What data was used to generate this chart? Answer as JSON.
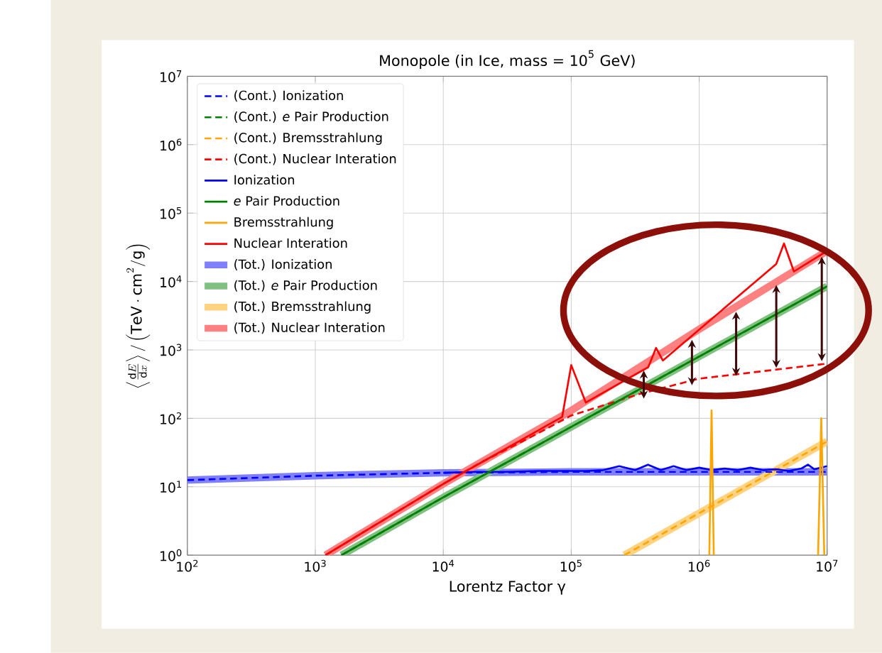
{
  "chart_data": {
    "type": "line",
    "title": "Monopole (in Ice, mass = 10$^{5}$ GeV)",
    "xlabel": "Lorentz Factor  γ",
    "ylabel": "\\left\\langle \\frac{\\mathrm{d}E}{\\mathrm{d}x} \\right\\rangle / \\left(\\mathrm{TeV}\\cdot\\mathrm{cm}^2/\\mathrm{g}\\right)",
    "log": "xy",
    "grid": true,
    "legend": "top left",
    "xlim": [
      100,
      10000000
    ],
    "ylim": [
      1,
      10000000
    ],
    "xticks": [
      {
        "value": 100,
        "label": "10$^{2}$"
      },
      {
        "value": 1000,
        "label": "10$^{3}$"
      },
      {
        "value": 10000,
        "label": "10$^{4}$"
      },
      {
        "value": 100000,
        "label": "10$^{5}$"
      },
      {
        "value": 1000000,
        "label": "10$^{6}$"
      },
      {
        "value": 10000000,
        "label": "10$^{7}$"
      }
    ],
    "yticks": [
      {
        "value": 1,
        "label": "10$^{0}$"
      },
      {
        "value": 10,
        "label": "10$^{1}$"
      },
      {
        "value": 100,
        "label": "10$^{2}$"
      },
      {
        "value": 1000,
        "label": "10$^{3}$"
      },
      {
        "value": 10000,
        "label": "10$^{4}$"
      },
      {
        "value": 100000,
        "label": "10$^{5}$"
      },
      {
        "value": 1000000,
        "label": "10$^{6}$"
      },
      {
        "value": 10000000,
        "label": "10$^{7}$"
      }
    ],
    "series": [
      {
        "name": "(Cont.) Ionization",
        "color": "#0000ff",
        "line_style": "dashed",
        "x": [
          100,
          1000,
          10000,
          100000,
          10000000
        ],
        "values": [
          12.5,
          14.5,
          16,
          16.5,
          16.5
        ]
      },
      {
        "name": "(Cont.) *e* Pair Production",
        "color": "#008000",
        "line_style": "dashed",
        "x": [
          1600,
          10000,
          100000,
          1000000,
          10000000
        ],
        "values": [
          1,
          7,
          75,
          800,
          8500
        ]
      },
      {
        "name": "(Cont.) Bremsstrahlung",
        "color": "#ffa500",
        "line_style": "dashed",
        "x": [
          260000,
          10000000
        ],
        "values": [
          1,
          46
        ]
      },
      {
        "name": "(Cont.) Nuclear Interation",
        "color": "#ff0000",
        "line_style": "dashed",
        "x": [
          1200,
          10000,
          20000,
          50000,
          100000,
          350000,
          1000000,
          10000000
        ],
        "values": [
          1,
          11,
          23,
          55,
          110,
          230,
          380,
          630
        ]
      },
      {
        "name": "Ionization",
        "color": "#0000ff",
        "line_style": "solid",
        "x": [
          10000,
          17800,
          31600,
          56200,
          100000,
          133000,
          178000,
          237000,
          316000,
          398000,
          501000,
          631000,
          794000,
          1000000,
          1260000,
          1580000,
          2000000,
          2510000,
          3160000,
          3980000,
          5010000,
          6310000,
          7080000,
          7940000,
          10000000
        ],
        "values": [
          16,
          16.5,
          16.5,
          17,
          17,
          17,
          17.5,
          20,
          17.5,
          21,
          17.5,
          20,
          17.5,
          19,
          17.5,
          18.5,
          17.5,
          19,
          17.5,
          18,
          17,
          18.5,
          21,
          18,
          20
        ]
      },
      {
        "name": "*e* Pair Production",
        "color": "#008000",
        "line_style": "solid",
        "x": [
          1600,
          10000,
          100000,
          1000000,
          10000000
        ],
        "values": [
          1,
          7,
          75,
          800,
          8500
        ]
      },
      {
        "name": "Bremsstrahlung",
        "color": "#ffa500",
        "line_style": "solid",
        "x": [
          1200000,
          1250000,
          1300000,
          5000000,
          8500000,
          9000000,
          9500000
        ],
        "values": [
          1,
          130,
          1,
          null,
          1,
          100,
          1
        ]
      },
      {
        "name": "Nuclear Interation",
        "color": "#ff0000",
        "line_style": "solid",
        "x": [
          1200,
          10000,
          85000,
          100000,
          130000,
          400000,
          460000,
          520000,
          4000000,
          4600000,
          5500000,
          10000000
        ],
        "values": [
          1,
          11,
          105,
          600,
          170,
          560,
          1070,
          700,
          18000,
          36000,
          14000,
          28000
        ]
      },
      {
        "name": "(Tot.) Ionization",
        "color": "#8080ff",
        "x": [
          100,
          1000,
          10000,
          100000,
          10000000
        ],
        "values": [
          12.5,
          14.5,
          16,
          16.5,
          16.5
        ]
      },
      {
        "name": "(Tot.) *e* Pair Production",
        "color": "#80c080",
        "x": [
          1600,
          10000,
          100000,
          1000000,
          10000000
        ],
        "values": [
          1,
          7,
          75,
          800,
          8500
        ]
      },
      {
        "name": "(Tot.) Bremsstrahlung",
        "color": "#ffd280",
        "x": [
          260000,
          10000000
        ],
        "values": [
          1,
          46
        ]
      },
      {
        "name": "(Tot.) Nuclear Interation",
        "color": "#ff8080",
        "x": [
          1200,
          10000,
          100000,
          1000000,
          10000000
        ],
        "values": [
          1,
          11,
          130,
          2000,
          28000
        ]
      }
    ]
  }
}
